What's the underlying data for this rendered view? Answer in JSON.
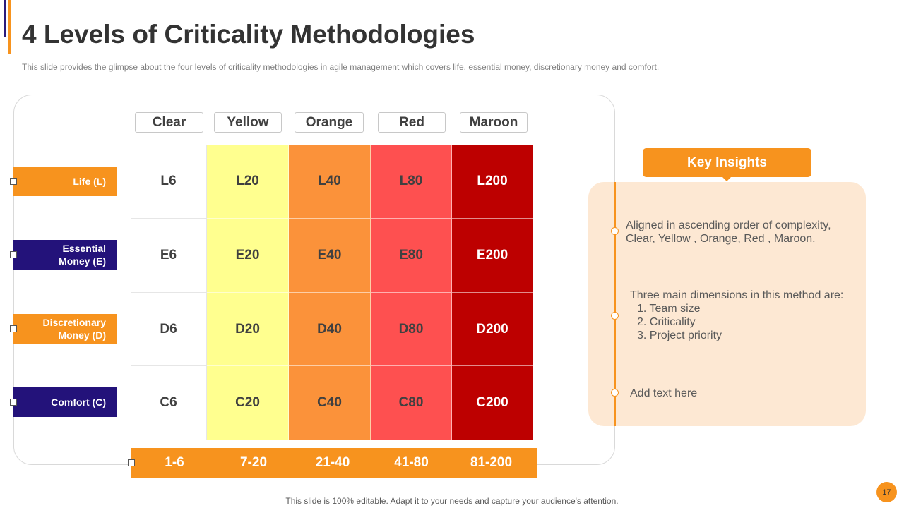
{
  "title": "4 Levels of Criticality Methodologies",
  "subtitle": "This slide provides  the glimpse about the four levels  of criticality methodologies in agile management  which covers life,  essential money,  discretionary money and comfort.",
  "columns": [
    "Clear",
    "Yellow",
    "Orange",
    "Red",
    "Maroon"
  ],
  "rows": [
    {
      "label": "Life (L)",
      "cells": [
        "L6",
        "L20",
        "L40",
        "L80",
        "L200"
      ]
    },
    {
      "label": "Essential Money (E)",
      "cells": [
        "E6",
        "E20",
        "E40",
        "E80",
        "E200"
      ]
    },
    {
      "label": "Discretionary Money (D)",
      "cells": [
        "D6",
        "D20",
        "D40",
        "D80",
        "D200"
      ]
    },
    {
      "label": "Comfort (C)",
      "cells": [
        "C6",
        "C20",
        "C40",
        "C80",
        "C200"
      ]
    }
  ],
  "ranges": [
    "1-6",
    "7-20",
    "21-40",
    "41-80",
    "81-200"
  ],
  "insights": {
    "header": "Key Insights",
    "item1": "Aligned in ascending order of complexity, Clear, Yellow , Orange, Red , Maroon.",
    "item2_intro": "Three main dimensions in this method are:",
    "item2_list": [
      "1.  Team size",
      "2.  Criticality",
      "3.  Project priority"
    ],
    "item3": "Add text here"
  },
  "footer": "This slide is 100% editable. Adapt it to your needs and capture your audience's attention.",
  "page_number": "17",
  "colors": {
    "accent": "#f7931e",
    "navy": "#23127a",
    "clear": "#ffffff",
    "yellow": "#ffff8f",
    "orange": "#fb923a",
    "red": "#fe5050",
    "maroon": "#bd0000",
    "panel": "#fde8d3"
  }
}
